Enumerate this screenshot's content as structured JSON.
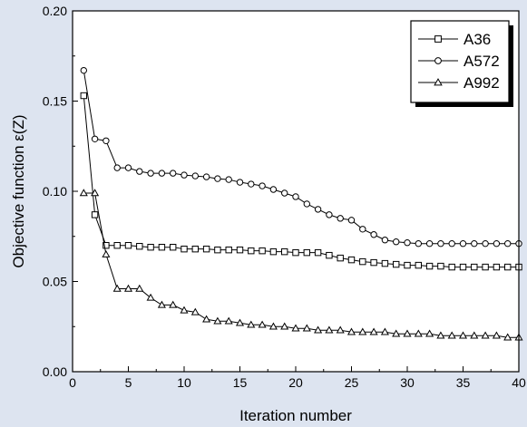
{
  "chart_data": {
    "type": "line",
    "title": "",
    "xlabel": "Iteration number",
    "ylabel": "Objective function ε(Z)",
    "xlim": [
      0,
      40
    ],
    "ylim": [
      0.0,
      0.2
    ],
    "xticks": [
      0,
      5,
      10,
      15,
      20,
      25,
      30,
      35,
      40
    ],
    "xtick_labels": [
      "0",
      "5",
      "10",
      "15",
      "20",
      "25",
      "30",
      "35",
      "40"
    ],
    "yticks": [
      0.0,
      0.05,
      0.1,
      0.15,
      0.2
    ],
    "ytick_labels": [
      "0.00",
      "0.05",
      "0.10",
      "0.15",
      "0.20"
    ],
    "grid": false,
    "legend_position": "top-right",
    "x": [
      1,
      2,
      3,
      4,
      5,
      6,
      7,
      8,
      9,
      10,
      11,
      12,
      13,
      14,
      15,
      16,
      17,
      18,
      19,
      20,
      21,
      22,
      23,
      24,
      25,
      26,
      27,
      28,
      29,
      30,
      31,
      32,
      33,
      34,
      35,
      36,
      37,
      38,
      39,
      40
    ],
    "series": [
      {
        "name": "A36",
        "marker": "square",
        "values": [
          0.153,
          0.087,
          0.07,
          0.07,
          0.07,
          0.0695,
          0.069,
          0.069,
          0.069,
          0.068,
          0.068,
          0.068,
          0.0675,
          0.0675,
          0.0675,
          0.067,
          0.067,
          0.0665,
          0.0665,
          0.066,
          0.066,
          0.066,
          0.0645,
          0.063,
          0.062,
          0.061,
          0.0605,
          0.06,
          0.0595,
          0.059,
          0.059,
          0.0585,
          0.0585,
          0.058,
          0.058,
          0.058,
          0.058,
          0.058,
          0.058,
          0.058
        ]
      },
      {
        "name": "A572",
        "marker": "circle",
        "values": [
          0.167,
          0.129,
          0.128,
          0.113,
          0.113,
          0.111,
          0.11,
          0.11,
          0.11,
          0.109,
          0.1085,
          0.108,
          0.107,
          0.1065,
          0.105,
          0.104,
          0.103,
          0.101,
          0.099,
          0.097,
          0.093,
          0.09,
          0.087,
          0.085,
          0.084,
          0.079,
          0.076,
          0.073,
          0.072,
          0.0715,
          0.071,
          0.071,
          0.071,
          0.071,
          0.071,
          0.071,
          0.071,
          0.071,
          0.071,
          0.071
        ]
      },
      {
        "name": "A992",
        "marker": "triangle",
        "values": [
          0.099,
          0.099,
          0.065,
          0.046,
          0.046,
          0.046,
          0.041,
          0.037,
          0.037,
          0.034,
          0.033,
          0.029,
          0.028,
          0.028,
          0.027,
          0.026,
          0.026,
          0.025,
          0.025,
          0.024,
          0.024,
          0.023,
          0.023,
          0.023,
          0.022,
          0.022,
          0.022,
          0.022,
          0.021,
          0.021,
          0.021,
          0.021,
          0.02,
          0.02,
          0.02,
          0.02,
          0.02,
          0.02,
          0.019,
          0.019
        ]
      }
    ]
  },
  "colors": {
    "background": "#dde4f0",
    "plot_background": "#ffffff",
    "line": "#000000"
  }
}
